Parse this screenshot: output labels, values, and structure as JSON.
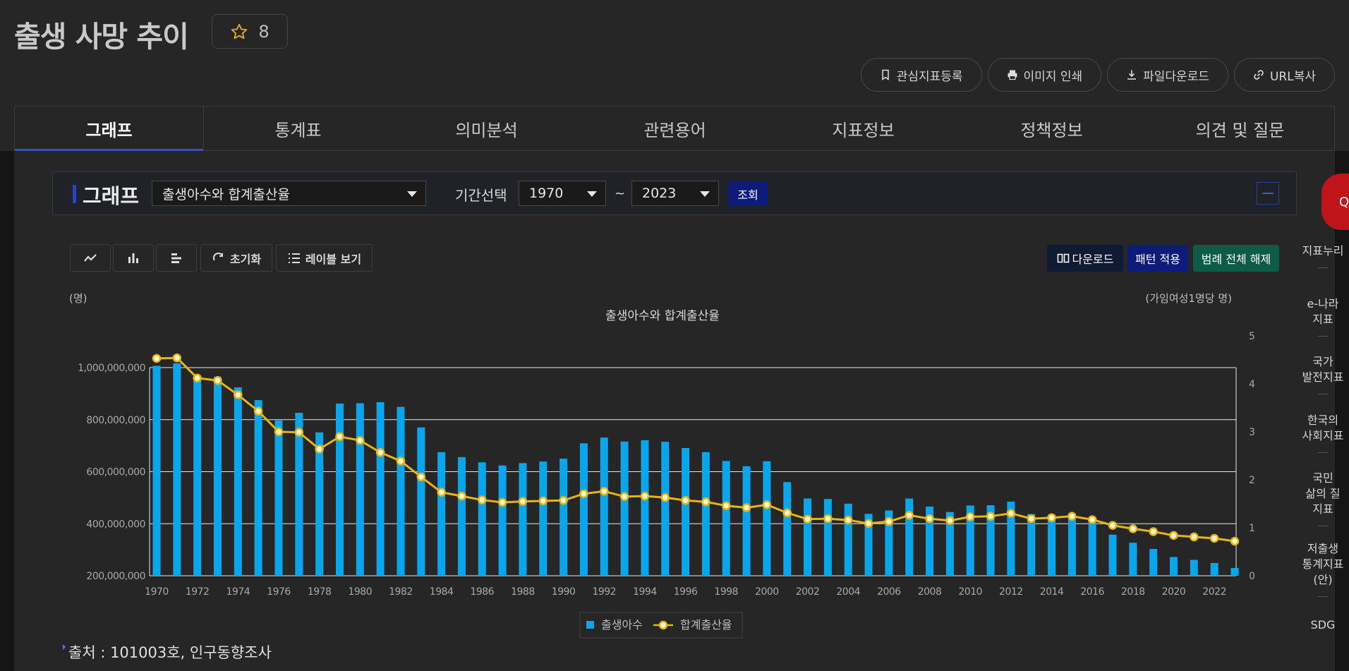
{
  "page": {
    "title": "출생 사망 추이",
    "favorite_count": "8"
  },
  "actions": [
    {
      "label": "관심지표등록",
      "icon": "bookmark-icon"
    },
    {
      "label": "이미지 인쇄",
      "icon": "printer-icon"
    },
    {
      "label": "파일다운로드",
      "icon": "download-icon"
    },
    {
      "label": "URL복사",
      "icon": "link-icon"
    }
  ],
  "tabs": [
    {
      "label": "그래프"
    },
    {
      "label": "통계표"
    },
    {
      "label": "의미분석"
    },
    {
      "label": "관련용어"
    },
    {
      "label": "지표정보"
    },
    {
      "label": "정책정보"
    },
    {
      "label": "의견 및 질문"
    }
  ],
  "panel": {
    "title": "그래프",
    "series_select": "출생아수와 합계출산율",
    "period_label": "기간선택",
    "from_year": "1970",
    "tilde": "~",
    "to_year": "2023",
    "query_label": "조회"
  },
  "toolbar": {
    "reset_label": "초기화",
    "label_view": "레이블 보기",
    "download_label": "다운로드",
    "pattern_label": "패턴 적용",
    "legend_off_label": "범례 전체 해제"
  },
  "colors": {
    "bar": "#0aa6ec",
    "line": "#e6b517",
    "marker_fill": "#fff8cc",
    "accent_blue": "#0d1b7a",
    "green": "#0e5c47",
    "quick_red": "#c0141b"
  },
  "chart_data": {
    "type": "bar",
    "title": "출생아수와 합계출산율",
    "ylabel": "(명)",
    "y2label": "(가임여성1명당 명)",
    "ylim": [
      200000000,
      1000000000
    ],
    "y2lim": [
      0,
      5
    ],
    "yticks": [
      "200,000,000",
      "400,000,000",
      "600,000,000",
      "800,000,000",
      "1,000,000,000"
    ],
    "y2ticks": [
      "0",
      "1",
      "2",
      "3",
      "4",
      "5"
    ],
    "x_tick_labels": [
      "1970",
      "1972",
      "1974",
      "1976",
      "1978",
      "1980",
      "1982",
      "1984",
      "1986",
      "1988",
      "1990",
      "1992",
      "1994",
      "1996",
      "1998",
      "2000",
      "2002",
      "2004",
      "2006",
      "2008",
      "2010",
      "2012",
      "2014",
      "2016",
      "2018",
      "2020",
      "2022"
    ],
    "categories": [
      "1970",
      "1971",
      "1972",
      "1973",
      "1974",
      "1975",
      "1976",
      "1977",
      "1978",
      "1979",
      "1980",
      "1981",
      "1982",
      "1983",
      "1984",
      "1985",
      "1986",
      "1987",
      "1988",
      "1989",
      "1990",
      "1991",
      "1992",
      "1993",
      "1994",
      "1995",
      "1996",
      "1997",
      "1998",
      "1999",
      "2000",
      "2001",
      "2002",
      "2003",
      "2004",
      "2005",
      "2006",
      "2007",
      "2008",
      "2009",
      "2010",
      "2011",
      "2012",
      "2013",
      "2014",
      "2015",
      "2016",
      "2017",
      "2018",
      "2019",
      "2020",
      "2021",
      "2022",
      "2023"
    ],
    "series": [
      {
        "name": "출생아수",
        "type": "bar",
        "axis": "left",
        "values": [
          1007000000,
          1025000000,
          956000000,
          965000000,
          924000000,
          875000000,
          797000000,
          826000000,
          751000000,
          862000000,
          863000000,
          867000000,
          849000000,
          770000000,
          675000000,
          656000000,
          636000000,
          624000000,
          633000000,
          639000000,
          650000000,
          709000000,
          731000000,
          716000000,
          721000000,
          715000000,
          691000000,
          675000000,
          641000000,
          621000000,
          640000000,
          560000000,
          497000000,
          495000000,
          477000000,
          438000000,
          451000000,
          497000000,
          466000000,
          445000000,
          470000000,
          471000000,
          485000000,
          437000000,
          435000000,
          438000000,
          406000000,
          358000000,
          327000000,
          303000000,
          272000000,
          261000000,
          249000000,
          230000000
        ]
      },
      {
        "name": "합계출산율",
        "type": "line",
        "axis": "right",
        "values": [
          4.53,
          4.54,
          4.12,
          4.07,
          3.77,
          3.43,
          3.0,
          2.99,
          2.64,
          2.9,
          2.82,
          2.57,
          2.39,
          2.06,
          1.74,
          1.66,
          1.58,
          1.53,
          1.55,
          1.56,
          1.57,
          1.71,
          1.76,
          1.65,
          1.66,
          1.63,
          1.57,
          1.54,
          1.46,
          1.42,
          1.48,
          1.31,
          1.18,
          1.19,
          1.16,
          1.09,
          1.13,
          1.26,
          1.19,
          1.15,
          1.23,
          1.24,
          1.3,
          1.19,
          1.21,
          1.24,
          1.17,
          1.05,
          0.98,
          0.92,
          0.84,
          0.81,
          0.78,
          0.72
        ]
      }
    ],
    "legend": [
      "출생아수",
      "합계출산율"
    ],
    "legend_position": "bottom",
    "grid": true
  },
  "source": "출처 : 101003호, 인구동향조사",
  "quick": {
    "label": "Quick",
    "links": [
      {
        "lines": [
          "지표누리"
        ]
      },
      {
        "lines": [
          "e-나라",
          "지표"
        ]
      },
      {
        "lines": [
          "국가",
          "발전지표"
        ]
      },
      {
        "lines": [
          "한국의",
          "사회지표"
        ]
      },
      {
        "lines": [
          "국민",
          "삶의 질",
          "지표"
        ]
      },
      {
        "lines": [
          "저출생",
          "통계지표",
          "(안)"
        ]
      },
      {
        "lines": [
          "SDG"
        ]
      }
    ]
  }
}
